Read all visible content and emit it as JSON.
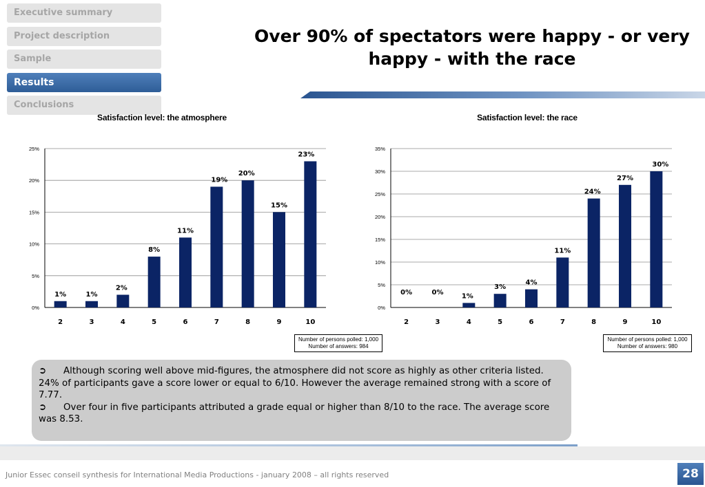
{
  "nav": {
    "items": [
      {
        "label": "Executive summary",
        "active": false
      },
      {
        "label": "Project description",
        "active": false
      },
      {
        "label": "Sample",
        "active": false
      },
      {
        "label": "Results",
        "active": true
      },
      {
        "label": "Conclusions",
        "active": false
      }
    ]
  },
  "title": "Over 90% of spectators were happy - or very happy - with the race",
  "colors": {
    "bar": "#0b2465",
    "nav_active": "#2e5d97",
    "nav_inactive": "#e4e4e4",
    "summary_bg": "#cccccc"
  },
  "chart_data": [
    {
      "type": "bar",
      "title": "Satisfaction level: the atmosphere",
      "categories": [
        "2",
        "3",
        "4",
        "5",
        "6",
        "7",
        "8",
        "9",
        "10"
      ],
      "values": [
        1,
        1,
        2,
        8,
        11,
        19,
        20,
        15,
        23
      ],
      "data_labels": [
        "1%",
        "1%",
        "2%",
        "8%",
        "11%",
        "19%",
        "20%",
        "15%",
        "23%"
      ],
      "yticks": [
        "0%",
        "5%",
        "10%",
        "15%",
        "20%",
        "25%"
      ],
      "ylim": [
        0,
        25
      ],
      "grid": true,
      "note": [
        "Number of persons polled: 1,000",
        "Number of answers: 984"
      ]
    },
    {
      "type": "bar",
      "title": "Satisfaction level: the race",
      "categories": [
        "2",
        "3",
        "4",
        "5",
        "6",
        "7",
        "8",
        "9",
        "10"
      ],
      "values": [
        0,
        0,
        1,
        3,
        4,
        11,
        24,
        27,
        30
      ],
      "data_labels": [
        "0%",
        "0%",
        "1%",
        "3%",
        "4%",
        "11%",
        "24%",
        "27%",
        "30%"
      ],
      "yticks": [
        "0%",
        "5%",
        "10%",
        "15%",
        "20%",
        "25%",
        "30%",
        "35%"
      ],
      "ylim": [
        0,
        35
      ],
      "grid": true,
      "note": [
        "Number of persons polled: 1,000",
        "Number of answers: 980"
      ]
    }
  ],
  "summary": {
    "bullet_icon": "arrow-circle-icon",
    "bullet_glyph": "➲",
    "points": [
      "Although scoring well above mid-figures, the atmosphere did not score as highly as other criteria listed. 24% of participants gave a score lower or equal to 6/10. However the average remained strong with a score of 7.77.",
      "Over four in five participants attributed a grade equal or higher than 8/10 to the race. The average score was 8.53."
    ]
  },
  "footer": {
    "text": "Junior Essec conseil synthesis for International Media Productions - january 2008 – all rights reserved",
    "page_number": "28"
  }
}
